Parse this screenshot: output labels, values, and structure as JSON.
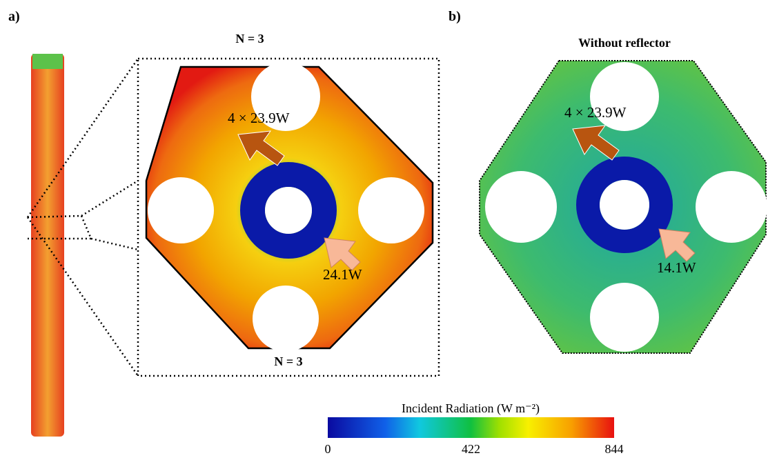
{
  "panels": [
    {
      "label": "a)",
      "title": "N = 3",
      "bottom_label": "N = 3",
      "annotations": [
        "4 × 23.9W",
        "24.1W"
      ]
    },
    {
      "label": "b)",
      "title": "Without reflector",
      "annotations": [
        "4 × 23.9W",
        "14.1W"
      ]
    }
  ],
  "colorbar": {
    "title": "Incident Radiation (W m⁻²)",
    "ticks": [
      0,
      422,
      844
    ]
  }
}
